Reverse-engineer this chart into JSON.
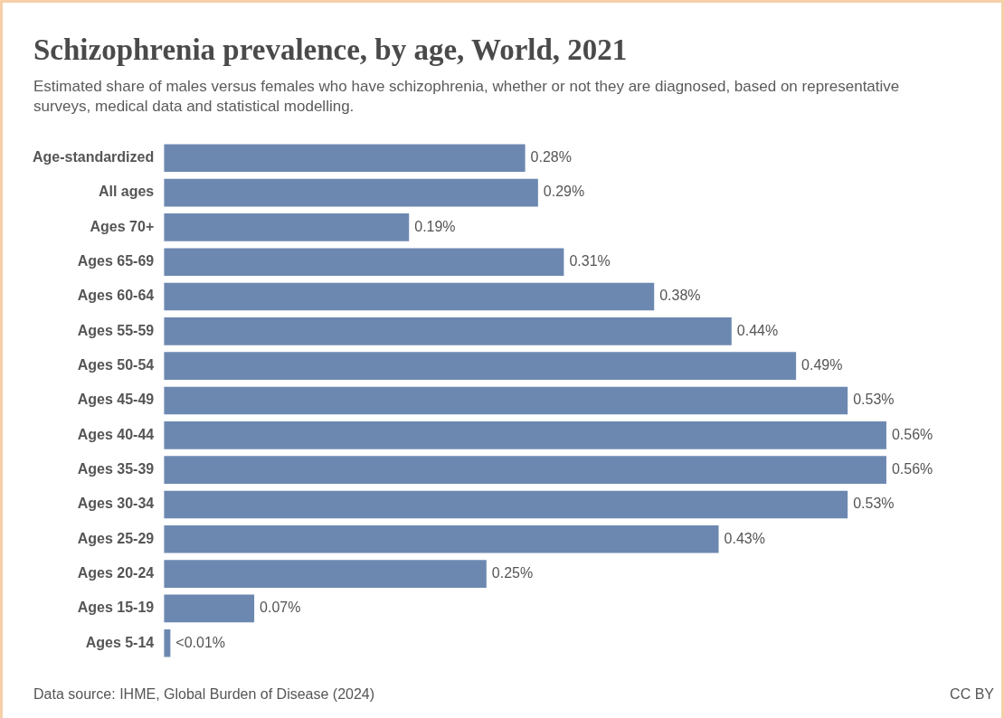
{
  "chart_data": {
    "type": "bar",
    "orientation": "horizontal",
    "title": "Schizophrenia prevalence, by age, World, 2021",
    "subtitle": "Estimated share of males versus females who have schizophrenia, whether or not they are diagnosed, based on representative surveys, medical data and statistical modelling.",
    "categories": [
      "Age-standardized",
      "All ages",
      "Ages 70+",
      "Ages 65-69",
      "Ages 60-64",
      "Ages 55-59",
      "Ages 50-54",
      "Ages 45-49",
      "Ages 40-44",
      "Ages 35-39",
      "Ages 30-34",
      "Ages 25-29",
      "Ages 20-24",
      "Ages 15-19",
      "Ages 5-14"
    ],
    "values": [
      0.28,
      0.29,
      0.19,
      0.31,
      0.38,
      0.44,
      0.49,
      0.53,
      0.56,
      0.56,
      0.53,
      0.43,
      0.25,
      0.07,
      0.005
    ],
    "value_labels": [
      "0.28%",
      "0.29%",
      "0.19%",
      "0.31%",
      "0.38%",
      "0.44%",
      "0.49%",
      "0.53%",
      "0.56%",
      "0.56%",
      "0.53%",
      "0.43%",
      "0.25%",
      "0.07%",
      "<0.01%"
    ],
    "color": "#6d88b0",
    "annotations": [
      "Data source: IHME, Global Burden of Disease (2024)",
      "CC BY"
    ]
  }
}
